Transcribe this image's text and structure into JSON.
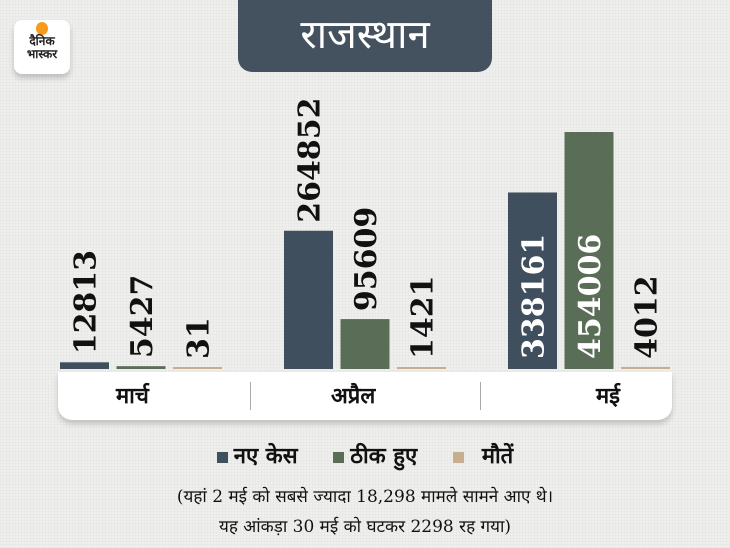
{
  "logo": {
    "line1": "दैनिक",
    "line2": "भास्कर"
  },
  "chart_data": {
    "type": "bar",
    "title": "राजस्थान",
    "categories": [
      "मार्च",
      "अप्रैल",
      "मई"
    ],
    "series": [
      {
        "name": "नए केस",
        "color": "#3f4f5e",
        "values": [
          12813,
          264852,
          338161
        ]
      },
      {
        "name": "ठीक हुए",
        "color": "#5a6d57",
        "values": [
          5427,
          95609,
          454006
        ]
      },
      {
        "name": "मौतें",
        "color": "#c6ae8e",
        "values": [
          31,
          1421,
          4012
        ]
      }
    ],
    "legend": "bottom",
    "grid": false,
    "annotations": [
      "(यहां 2 मई को सबसे ज्यादा 18,298 मामले सामने आए थे।",
      "यह आंकड़ा 30 मई को घटकर 2298 रह गया)"
    ]
  }
}
